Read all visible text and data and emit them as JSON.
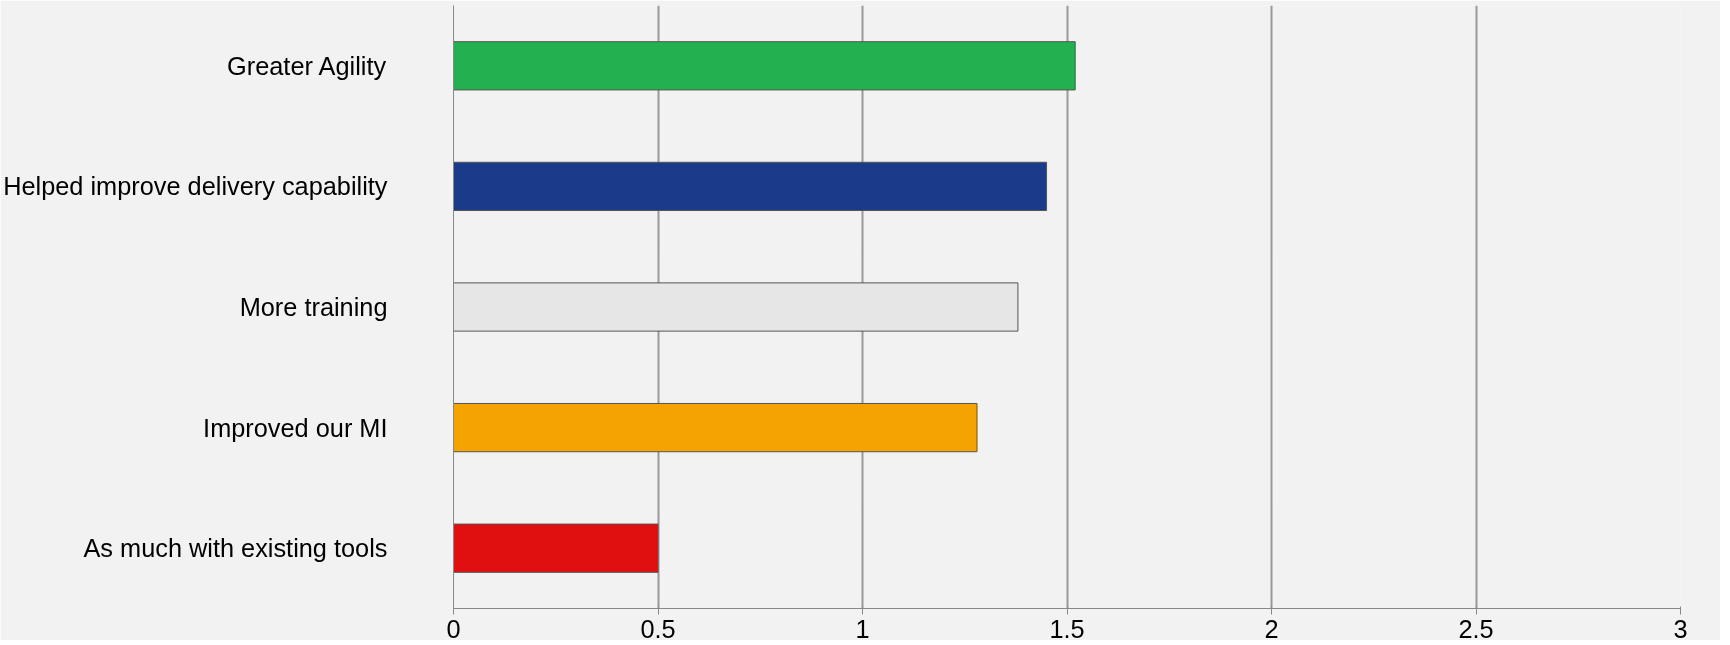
{
  "chart_data": {
    "type": "bar",
    "orientation": "horizontal",
    "categories": [
      "Greater Agility",
      "Helped improve delivery capability",
      "More training",
      "Improved our MI",
      "As much with existing tools"
    ],
    "values": [
      1.52,
      1.45,
      1.38,
      1.28,
      0.5
    ],
    "colors": [
      "#22b050",
      "#1a3a8a",
      "#e6e6e6",
      "#f5a300",
      "#e01010"
    ],
    "xlim": [
      0,
      3
    ],
    "xticks": [
      0,
      0.5,
      1,
      1.5,
      2,
      2.5,
      3
    ],
    "grid": "x"
  }
}
